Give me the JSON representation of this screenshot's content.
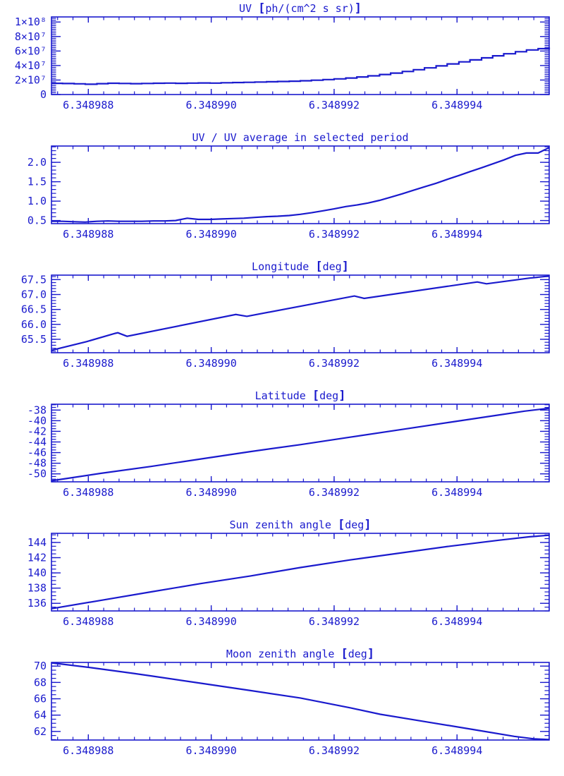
{
  "style": {
    "accent_color": "#1a1acd",
    "background_color": "#ffffff"
  },
  "chart_data": {
    "x_axis": {
      "range": [
        6.3489874,
        6.3489955
      ],
      "tick_values": [
        6.348988,
        6.34899,
        6.348992,
        6.348994
      ],
      "tick_labels": [
        "6.348988",
        "6.348990",
        "6.348992",
        "6.348994"
      ],
      "minor_step": 2.5e-07
    },
    "x_dense": [
      6.3489874,
      6.34898758,
      6.34898777,
      6.34898795,
      6.34898814,
      6.34898832,
      6.3489885,
      6.34898869,
      6.34898887,
      6.34898906,
      6.34898924,
      6.34898942,
      6.34898961,
      6.34898979,
      6.34898998,
      6.34899016,
      6.34899035,
      6.34899053,
      6.34899071,
      6.3489909,
      6.34899108,
      6.34899127,
      6.34899145,
      6.34899163,
      6.34899182,
      6.348992,
      6.34899219,
      6.34899237,
      6.34899255,
      6.34899274,
      6.34899292,
      6.34899311,
      6.34899329,
      6.34899347,
      6.34899366,
      6.34899384,
      6.34899403,
      6.34899421,
      6.3489944,
      6.34899458,
      6.34899476,
      6.34899495,
      6.34899513,
      6.34899532,
      6.3489955
    ],
    "charts": [
      {
        "type": "line",
        "title": "UV [ph/(cm^2 s sr)]",
        "interpolation": "step",
        "y_range": [
          0,
          107000000
        ],
        "y_tick_values": [
          0,
          20000000,
          40000000,
          60000000,
          80000000,
          100000000
        ],
        "y_tick_labels": [
          "0",
          "2×10⁷",
          "4×10⁷",
          "6×10⁷",
          "8×10⁷",
          "1×10⁸"
        ],
        "y_minor_step": 2500000,
        "x": "x_dense",
        "y": [
          15500000.0,
          15200000.0,
          14800000.0,
          14200000.0,
          15000000.0,
          15600000.0,
          15300000.0,
          15000000.0,
          15300000.0,
          15600000.0,
          15800000.0,
          15500000.0,
          15800000.0,
          16000000.0,
          15800000.0,
          16200000.0,
          16500000.0,
          16800000.0,
          17200000.0,
          17600000.0,
          18000000.0,
          18400000.0,
          19000000.0,
          19700000.0,
          20600000.0,
          21600000.0,
          22800000.0,
          24200000.0,
          25800000.0,
          27600000.0,
          29600000.0,
          31800000.0,
          34200000.0,
          36800000.0,
          39500000.0,
          42200000.0,
          45000000.0,
          47800000.0,
          50600000.0,
          53400000.0,
          56200000.0,
          59000000.0,
          61500000.0,
          63200000.0,
          65000000.0
        ]
      },
      {
        "type": "line",
        "title": "UV / UV average in selected period",
        "interpolation": "linear",
        "y_range": [
          0.42,
          2.42
        ],
        "y_tick_values": [
          0.5,
          1.0,
          1.5,
          2.0
        ],
        "y_tick_labels": [
          "0.5",
          "1.0",
          "1.5",
          "2.0"
        ],
        "y_minor_step": 0.1,
        "x": "x_dense",
        "y": [
          0.48,
          0.48,
          0.47,
          0.46,
          0.48,
          0.49,
          0.48,
          0.48,
          0.48,
          0.49,
          0.49,
          0.5,
          0.56,
          0.53,
          0.53,
          0.54,
          0.55,
          0.56,
          0.58,
          0.6,
          0.61,
          0.63,
          0.66,
          0.7,
          0.75,
          0.8,
          0.86,
          0.9,
          0.95,
          1.02,
          1.1,
          1.19,
          1.28,
          1.37,
          1.46,
          1.56,
          1.66,
          1.76,
          1.86,
          1.96,
          2.06,
          2.18,
          2.24,
          2.24,
          2.38
        ]
      },
      {
        "type": "line",
        "title": "Longitude [deg]",
        "interpolation": "linear",
        "y_range": [
          65.05,
          67.65
        ],
        "y_tick_values": [
          65.5,
          66.0,
          66.5,
          67.0,
          67.5
        ],
        "y_tick_labels": [
          "65.5",
          "66.0",
          "66.5",
          "67.0",
          "67.5"
        ],
        "y_minor_step": 0.1,
        "x": [
          6.3489874,
          6.34898797,
          6.34898844,
          6.34898848,
          6.34898863,
          6.3489904,
          6.34899058,
          6.34899233,
          6.34899249,
          6.34899433,
          6.34899448,
          6.34899518,
          6.3489955
        ],
        "y": [
          65.13,
          65.42,
          65.7,
          65.72,
          65.6,
          66.33,
          66.27,
          66.95,
          66.87,
          67.42,
          67.36,
          67.55,
          67.62
        ]
      },
      {
        "type": "line",
        "title": "Latitude [deg]",
        "interpolation": "linear",
        "y_range": [
          -51.5,
          -36.9
        ],
        "y_tick_values": [
          -50,
          -48,
          -46,
          -44,
          -42,
          -40,
          -38
        ],
        "y_tick_labels": [
          "-50",
          "-48",
          "-46",
          "-44",
          "-42",
          "-40",
          "-38"
        ],
        "y_minor_step": 0.5,
        "x": [
          6.3489874,
          6.34898821,
          6.34898902,
          6.34898983,
          6.34899064,
          6.34899145,
          6.34899226,
          6.34899307,
          6.34899388,
          6.34899469,
          6.3489951,
          6.3489955
        ],
        "y": [
          -51.3,
          -49.9,
          -48.6,
          -47.2,
          -45.8,
          -44.5,
          -43.1,
          -41.7,
          -40.3,
          -38.9,
          -38.2,
          -37.65
        ]
      },
      {
        "type": "line",
        "title": "Sun zenith angle [deg]",
        "interpolation": "linear",
        "y_range": [
          135.0,
          145.2
        ],
        "y_tick_values": [
          136,
          138,
          140,
          142,
          144
        ],
        "y_tick_labels": [
          "136",
          "138",
          "140",
          "142",
          "144"
        ],
        "y_minor_step": 0.5,
        "x": [
          6.3489874,
          6.34898821,
          6.34898902,
          6.34898983,
          6.34899064,
          6.34899145,
          6.34899226,
          6.34899307,
          6.34899388,
          6.34899469,
          6.34899518,
          6.3489955
        ],
        "y": [
          135.3,
          136.4,
          137.5,
          138.6,
          139.6,
          140.7,
          141.7,
          142.6,
          143.5,
          144.3,
          144.75,
          144.95
        ]
      },
      {
        "type": "line",
        "title": "Moon zenith angle [deg]",
        "interpolation": "linear",
        "y_range": [
          60.95,
          70.45
        ],
        "y_tick_values": [
          62,
          64,
          66,
          68,
          70
        ],
        "y_tick_labels": [
          "62",
          "64",
          "66",
          "68",
          "70"
        ],
        "y_minor_step": 0.5,
        "x": [
          6.3489874,
          6.34898805,
          6.34898874,
          6.34898902,
          6.34898983,
          6.34899064,
          6.34899145,
          6.34899226,
          6.34899275,
          6.34899348,
          6.34899429,
          6.34899493,
          6.34899525,
          6.3489955
        ],
        "y": [
          70.4,
          69.8,
          69.1,
          68.8,
          67.9,
          67.0,
          66.1,
          64.9,
          64.1,
          63.2,
          62.2,
          61.4,
          61.1,
          61.0
        ]
      }
    ]
  }
}
